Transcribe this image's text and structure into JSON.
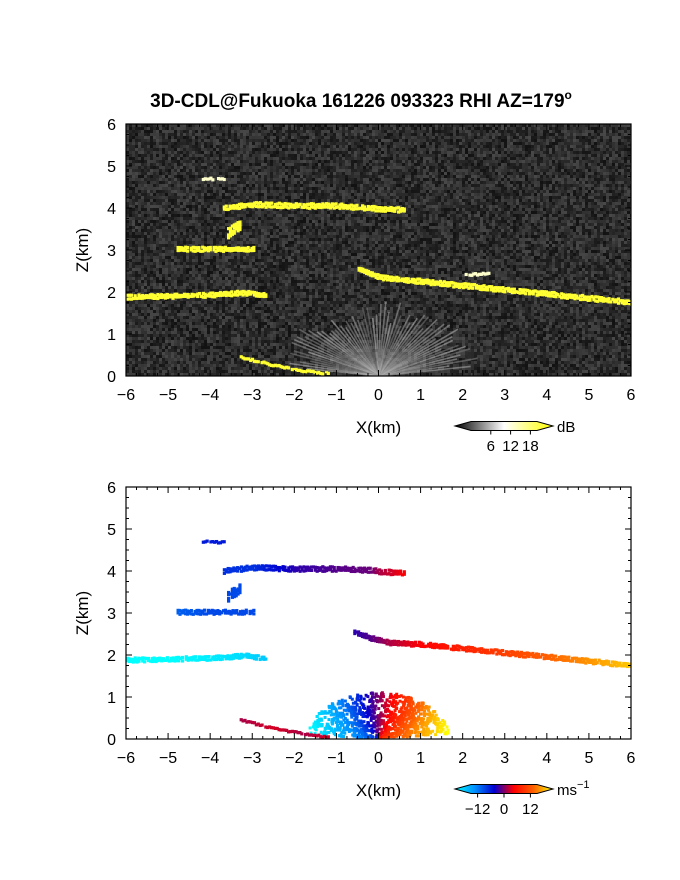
{
  "title": "3D-CDL@Fukuoka 161226 093323 RHI AZ=179",
  "title_superscript": "o",
  "chart_data": [
    {
      "type": "heatmap",
      "quantity": "backscatter",
      "xlabel": "X(km)",
      "ylabel": "Z(km)",
      "xlim": [
        -6,
        6
      ],
      "ylim": [
        0,
        6
      ],
      "xticks": [
        -6,
        -5,
        -4,
        -3,
        -2,
        -1,
        0,
        1,
        2,
        3,
        4,
        5,
        6
      ],
      "yticks": [
        0,
        1,
        2,
        3,
        4,
        5,
        6
      ],
      "background": "noise",
      "colorbar": {
        "unit": "dB",
        "ticks": [
          6,
          12,
          18
        ],
        "range": [
          0,
          20
        ],
        "colors": [
          "#000000",
          "#ffffff",
          "#ffff00"
        ]
      },
      "features": [
        {
          "label": "layer",
          "x": [
            -6.0,
            -5.0,
            -4.0,
            -3.2,
            -2.7
          ],
          "z": [
            1.88,
            1.9,
            1.93,
            1.98,
            1.92
          ],
          "thickness": 0.12,
          "dB": 18
        },
        {
          "label": "layer",
          "x": [
            -4.8,
            -4.0,
            -3.0
          ],
          "z": [
            3.02,
            3.02,
            3.02
          ],
          "thickness": 0.12,
          "dB": 18
        },
        {
          "label": "layer",
          "x": [
            -3.6,
            -3.3
          ],
          "z": [
            3.4,
            3.6
          ],
          "thickness": 0.25,
          "dB": 18
        },
        {
          "label": "layer",
          "x": [
            -3.7,
            -3.0,
            -2.0,
            -1.0,
            0.0,
            0.6
          ],
          "z": [
            4.0,
            4.08,
            4.05,
            4.05,
            3.98,
            3.95
          ],
          "thickness": 0.14,
          "dB": 18
        },
        {
          "label": "layer",
          "x": [
            -0.5,
            0.0,
            1.0,
            2.0,
            3.0,
            4.0,
            5.0,
            6.0
          ],
          "z": [
            2.55,
            2.35,
            2.25,
            2.15,
            2.05,
            1.95,
            1.85,
            1.75
          ],
          "thickness": 0.13,
          "dB": 18
        },
        {
          "label": "layer",
          "x": [
            -3.3,
            -2.5,
            -1.8,
            -1.2
          ],
          "z": [
            0.45,
            0.25,
            0.12,
            0.05
          ],
          "thickness": 0.05,
          "dB": 18
        },
        {
          "label": "layer",
          "x": [
            -4.2,
            -3.7
          ],
          "z": [
            4.7,
            4.68
          ],
          "thickness": 0.08,
          "dB": 12
        },
        {
          "label": "layer",
          "x": [
            2.0,
            2.6
          ],
          "z": [
            2.4,
            2.45
          ],
          "thickness": 0.08,
          "dB": 12
        }
      ]
    },
    {
      "type": "heatmap",
      "quantity": "radial velocity",
      "xlabel": "X(km)",
      "ylabel": "Z(km)",
      "xlim": [
        -6,
        6
      ],
      "ylim": [
        0,
        6
      ],
      "xticks": [
        -6,
        -5,
        -4,
        -3,
        -2,
        -1,
        0,
        1,
        2,
        3,
        4,
        5,
        6
      ],
      "yticks": [
        0,
        1,
        2,
        3,
        4,
        5,
        6
      ],
      "colorbar": {
        "unit": "ms",
        "unit_exponent": "−1",
        "ticks": [
          -12,
          0,
          12
        ],
        "tick_labels": [
          "−12",
          "0",
          "12"
        ],
        "range": [
          -15,
          15
        ],
        "colors": [
          "#00ffff",
          "#0090ff",
          "#0000d0",
          "#ff0000",
          "#ff6000",
          "#ffff00"
        ]
      },
      "features": [
        {
          "label": "layer",
          "x": [
            -6.0,
            -5.0,
            -4.0,
            -3.2,
            -2.7
          ],
          "z": [
            1.88,
            1.9,
            1.93,
            1.98,
            1.92
          ],
          "thickness": 0.12,
          "v": [
            -15,
            -15,
            -14,
            -13,
            -12
          ]
        },
        {
          "label": "layer",
          "x": [
            -4.8,
            -4.0,
            -3.0
          ],
          "z": [
            3.02,
            3.02,
            3.02
          ],
          "thickness": 0.12,
          "v": [
            -7,
            -6,
            -6
          ]
        },
        {
          "label": "layer",
          "x": [
            -3.6,
            -3.3
          ],
          "z": [
            3.4,
            3.6
          ],
          "thickness": 0.25,
          "v": [
            -6,
            -6
          ]
        },
        {
          "label": "layer",
          "x": [
            -3.7,
            -3.0,
            -2.0,
            -1.0,
            -0.2,
            0.0,
            0.6
          ],
          "z": [
            4.0,
            4.08,
            4.05,
            4.05,
            4.02,
            3.98,
            3.95
          ],
          "thickness": 0.14,
          "v": [
            -5,
            -5,
            -2,
            -1,
            -0.5,
            1,
            3
          ]
        },
        {
          "label": "layer",
          "x": [
            -0.6,
            -0.2,
            0.2,
            1.0,
            2.0,
            3.0,
            4.0,
            5.0,
            6.0
          ],
          "z": [
            2.55,
            2.4,
            2.3,
            2.25,
            2.15,
            2.05,
            1.95,
            1.85,
            1.75
          ],
          "thickness": 0.13,
          "v": [
            -2,
            -1,
            1,
            3,
            5,
            7,
            9,
            11,
            13
          ]
        },
        {
          "label": "layer",
          "x": [
            -4.2,
            -3.7
          ],
          "z": [
            4.7,
            4.68
          ],
          "thickness": 0.08,
          "v": [
            -4,
            -4
          ]
        },
        {
          "label": "layer",
          "x": [
            -3.3,
            -2.5,
            -1.8,
            -1.2
          ],
          "z": [
            0.45,
            0.25,
            0.12,
            0.05
          ],
          "thickness": 0.05,
          "v": [
            1,
            2,
            1,
            2
          ]
        }
      ]
    }
  ]
}
